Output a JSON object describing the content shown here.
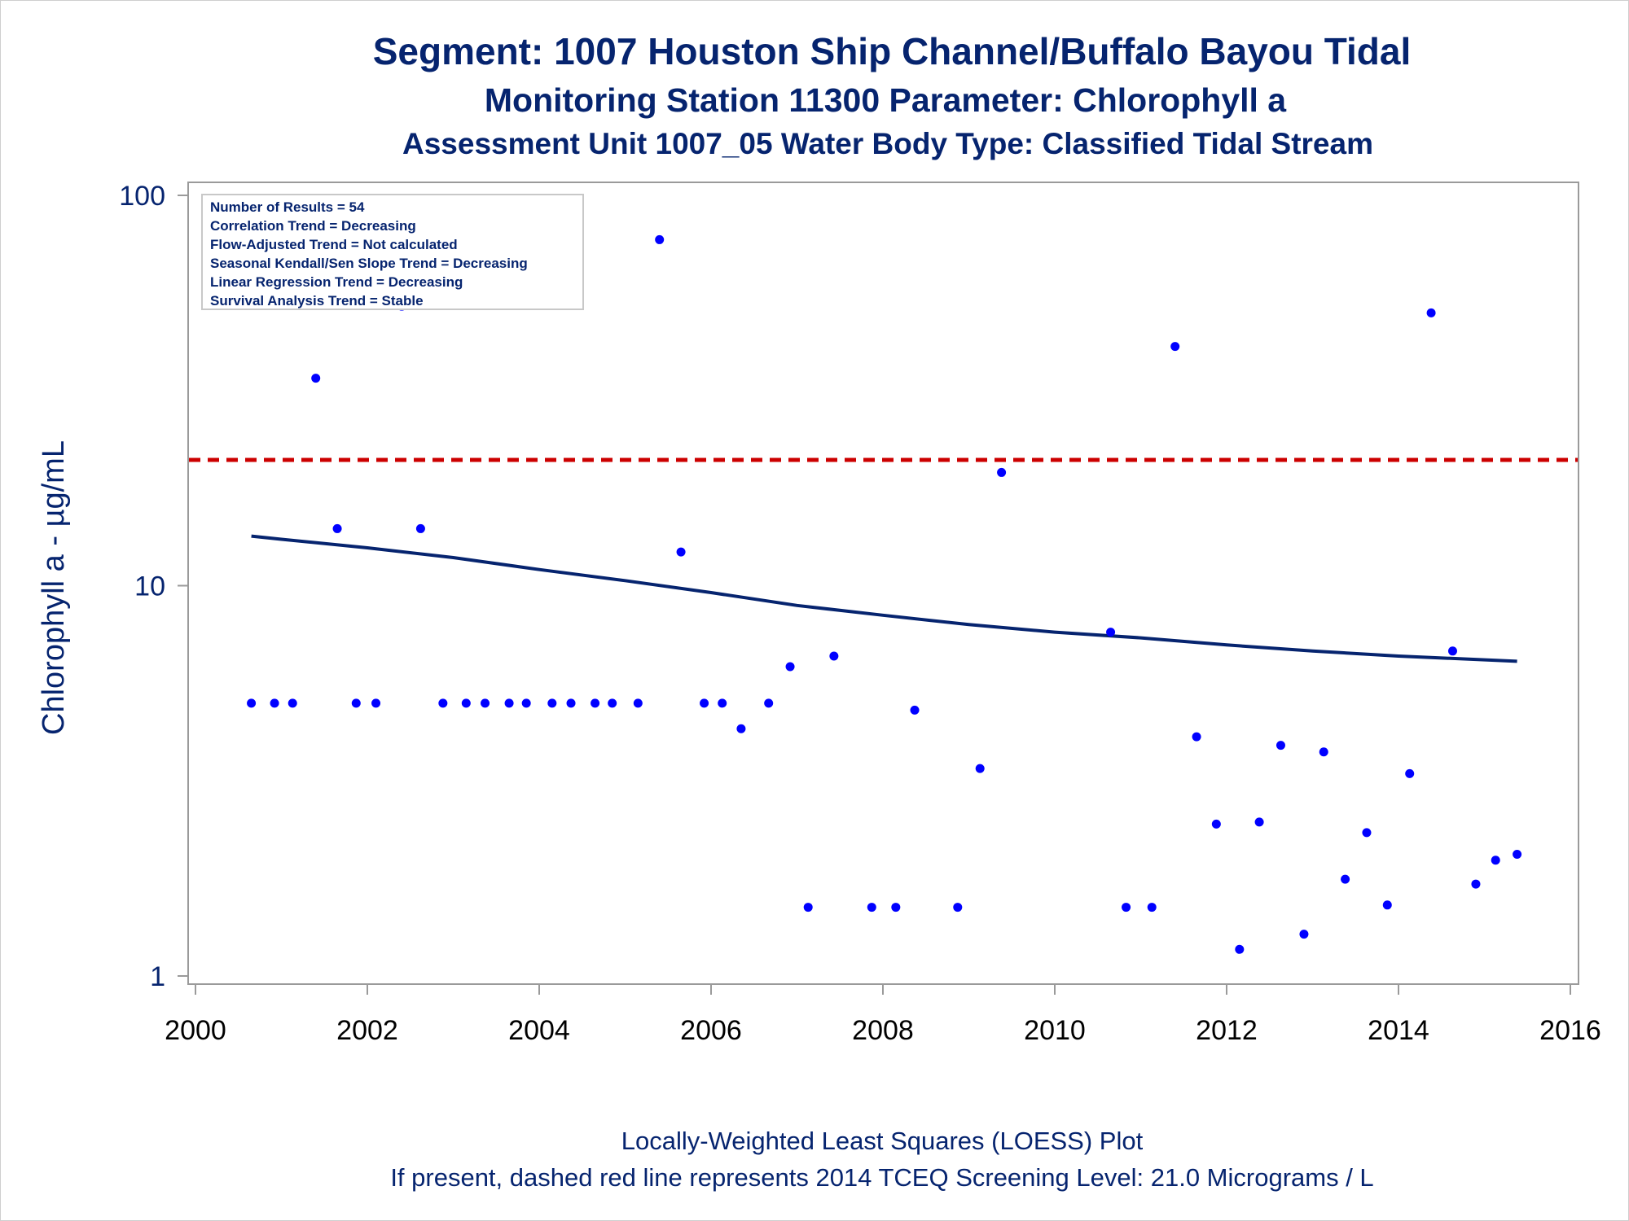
{
  "chart_data": {
    "type": "scatter",
    "title": "Segment: 1007  Houston Ship Channel/Buffalo Bayou Tidal",
    "subtitle": "Monitoring Station 11300 Parameter: Chlorophyll a",
    "subtitle2": "Assessment Unit 1007_05   Water Body Type: Classified Tidal Stream",
    "ylabel": "Chlorophyll a -  µg/mL",
    "xlabel": "",
    "footnote1": "Locally-Weighted Least Squares (LOESS) Plot",
    "footnote2": "If present, dashed red line represents 2014 TCEQ Screening Level: 21.0 Micrograms / L",
    "y_scale": "log",
    "ylim": [
      1,
      100
    ],
    "xlim": [
      2000,
      2016
    ],
    "x_ticks": [
      "2000",
      "2002",
      "2004",
      "2006",
      "2008",
      "2010",
      "2012",
      "2014",
      "2016"
    ],
    "y_ticks": [
      "1",
      "10",
      "100"
    ],
    "stats_box": [
      "Number of Results = 54",
      "Correlation Trend = Decreasing",
      "Flow-Adjusted Trend = Not calculated",
      "Seasonal Kendall/Sen Slope Trend = Decreasing",
      "Linear Regression Trend = Decreasing",
      "Survival Analysis Trend = Stable"
    ],
    "screening_level": 21.0,
    "points": [
      [
        2000.65,
        5
      ],
      [
        2000.92,
        5
      ],
      [
        2001.13,
        5
      ],
      [
        2001.4,
        34
      ],
      [
        2001.65,
        14
      ],
      [
        2001.87,
        5
      ],
      [
        2002.1,
        5
      ],
      [
        2002.4,
        52
      ],
      [
        2002.62,
        14
      ],
      [
        2002.88,
        5
      ],
      [
        2003.15,
        5
      ],
      [
        2003.37,
        5
      ],
      [
        2003.65,
        5
      ],
      [
        2003.85,
        5
      ],
      [
        2004.15,
        5
      ],
      [
        2004.37,
        5
      ],
      [
        2004.65,
        5
      ],
      [
        2004.85,
        5
      ],
      [
        2005.15,
        5
      ],
      [
        2005.4,
        77
      ],
      [
        2005.65,
        12.2
      ],
      [
        2005.92,
        5
      ],
      [
        2006.13,
        5
      ],
      [
        2006.35,
        4.3
      ],
      [
        2006.67,
        5
      ],
      [
        2006.92,
        6.2
      ],
      [
        2007.13,
        1.5
      ],
      [
        2007.43,
        6.6
      ],
      [
        2007.87,
        1.5
      ],
      [
        2008.15,
        1.5
      ],
      [
        2008.37,
        4.8
      ],
      [
        2008.87,
        1.5
      ],
      [
        2009.13,
        3.4
      ],
      [
        2009.38,
        19.5
      ],
      [
        2010.65,
        7.6
      ],
      [
        2010.83,
        1.5
      ],
      [
        2011.13,
        1.5
      ],
      [
        2011.4,
        41
      ],
      [
        2011.65,
        4.1
      ],
      [
        2011.88,
        2.45
      ],
      [
        2012.15,
        1.17
      ],
      [
        2012.38,
        2.48
      ],
      [
        2012.63,
        3.9
      ],
      [
        2012.9,
        1.28
      ],
      [
        2013.13,
        3.75
      ],
      [
        2013.38,
        1.77
      ],
      [
        2013.63,
        2.33
      ],
      [
        2013.87,
        1.52
      ],
      [
        2014.13,
        3.3
      ],
      [
        2014.38,
        50
      ],
      [
        2014.63,
        6.8
      ],
      [
        2014.9,
        1.72
      ],
      [
        2015.13,
        1.98
      ],
      [
        2015.38,
        2.05
      ]
    ],
    "loess": [
      [
        2000.65,
        13.4
      ],
      [
        2001.0,
        13.15
      ],
      [
        2002.0,
        12.5
      ],
      [
        2003.0,
        11.8
      ],
      [
        2004.0,
        11.0
      ],
      [
        2005.0,
        10.3
      ],
      [
        2006.0,
        9.6
      ],
      [
        2007.0,
        8.9
      ],
      [
        2008.0,
        8.4
      ],
      [
        2009.0,
        7.95
      ],
      [
        2010.0,
        7.6
      ],
      [
        2011.0,
        7.35
      ],
      [
        2012.0,
        7.05
      ],
      [
        2013.0,
        6.8
      ],
      [
        2014.0,
        6.6
      ],
      [
        2015.38,
        6.4
      ]
    ],
    "colors": {
      "points": "#0000ff",
      "loess": "#06246f",
      "screening": "#cc0000",
      "text": "#06246f",
      "axis": "#9a9a9a"
    }
  }
}
